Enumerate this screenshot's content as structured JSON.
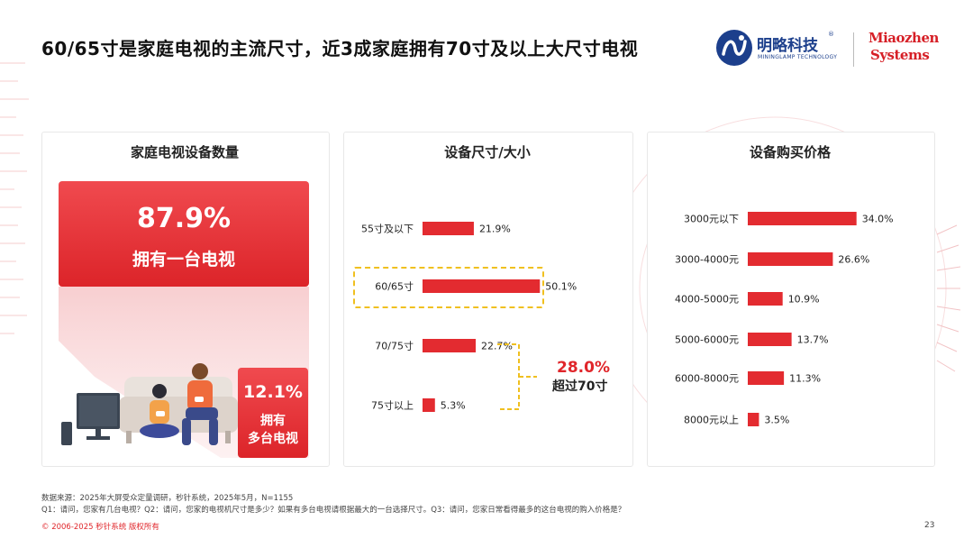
{
  "page": {
    "title": "60/65寸是家庭电视的主流尺寸，近3成家庭拥有70寸及以上大尺寸电视",
    "page_number": "23",
    "copyright": "© 2006-2025 秒针系统 版权所有",
    "source_line": "数据来源：2025年大屏受众定量调研，秒针系统，2025年5月，N=1155",
    "questions_line": "Q1：请问，您家有几台电视？Q2：请问，您家的电视机尺寸是多少？如果有多台电视请根据最大的一台选择尺寸。Q3：请问，您家日常看得最多的这台电视的购入价格是？"
  },
  "logos": {
    "mininglamp_cn": "明略科技",
    "mininglamp_en": "MININGLAMP TECHNOLOGY",
    "miaozhen_line1": "Miaozhen",
    "miaozhen_line2": "Systems"
  },
  "colors": {
    "accent": "#e0262b",
    "bar": "#e32b30",
    "highlight_border": "#f0c020",
    "brand_blue": "#1c3f8c"
  },
  "panel1": {
    "title": "家庭电视设备数量",
    "single_pct": "87.9%",
    "single_label": "拥有一台电视",
    "multi_pct": "12.1%",
    "multi_label_1": "拥有",
    "multi_label_2": "多台电视"
  },
  "panel2": {
    "title": "设备尺寸/大小",
    "annotation_pct": "28.0%",
    "annotation_label": "超过70寸"
  },
  "panel3": {
    "title": "设备购买价格"
  },
  "chart_data": [
    {
      "type": "bar",
      "orientation": "horizontal",
      "title": "设备尺寸/大小",
      "categories": [
        "55寸及以下",
        "60/65寸",
        "70/75寸",
        "75寸以上"
      ],
      "values": [
        21.9,
        50.1,
        22.7,
        5.3
      ],
      "value_labels": [
        "21.9%",
        "50.1%",
        "22.7%",
        "5.3%"
      ],
      "unit": "%",
      "highlight_category": "60/65寸",
      "grid": false
    },
    {
      "type": "bar",
      "orientation": "horizontal",
      "title": "设备购买价格",
      "categories": [
        "3000元以下",
        "3000-4000元",
        "4000-5000元",
        "5000-6000元",
        "6000-8000元",
        "8000元以上"
      ],
      "values": [
        34.0,
        26.6,
        10.9,
        13.7,
        11.3,
        3.5
      ],
      "value_labels": [
        "34.0%",
        "26.6%",
        "10.9%",
        "13.7%",
        "11.3%",
        "3.5%"
      ],
      "unit": "%",
      "grid": false
    }
  ]
}
